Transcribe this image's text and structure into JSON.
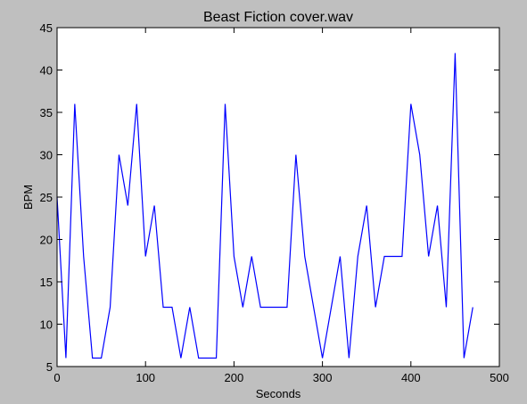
{
  "chart_data": {
    "type": "line",
    "title": "Beast Fiction cover.wav",
    "xlabel": "Seconds",
    "ylabel": "BPM",
    "xlim": [
      0,
      500
    ],
    "ylim": [
      5,
      45
    ],
    "xticks": [
      0,
      100,
      200,
      300,
      400,
      500
    ],
    "yticks": [
      5,
      10,
      15,
      20,
      25,
      30,
      35,
      40,
      45
    ],
    "grid": false,
    "series": [
      {
        "color": "#0000ff",
        "x": [
          0,
          10,
          20,
          30,
          40,
          50,
          60,
          70,
          80,
          90,
          100,
          110,
          120,
          130,
          140,
          150,
          160,
          170,
          180,
          190,
          200,
          210,
          220,
          230,
          240,
          250,
          260,
          270,
          280,
          290,
          300,
          310,
          320,
          330,
          340,
          350,
          360,
          370,
          380,
          390,
          400,
          410,
          420,
          430,
          440,
          450,
          460,
          470
        ],
        "values": [
          25,
          6,
          36,
          18,
          6,
          6,
          12,
          30,
          24,
          36,
          18,
          24,
          12,
          12,
          6,
          12,
          6,
          6,
          6,
          36,
          18,
          12,
          18,
          12,
          12,
          12,
          12,
          30,
          18,
          12,
          6,
          12,
          18,
          6,
          18,
          24,
          12,
          18,
          18,
          18,
          36,
          30,
          18,
          24,
          12,
          42,
          6,
          12
        ]
      }
    ]
  }
}
